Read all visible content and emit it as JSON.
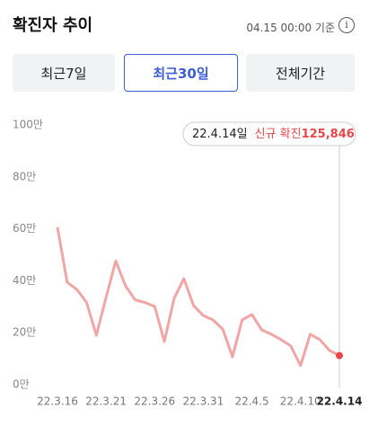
{
  "header": {
    "title": "확진자 추이",
    "timestamp": "04.15 00:00 기준"
  },
  "tabs": [
    "최근7일",
    "최근30일",
    "전체기간"
  ],
  "active_tab": 1,
  "chart_data": {
    "type": "line",
    "categories": [
      "22.3.16",
      null,
      null,
      null,
      null,
      "22.3.21",
      null,
      null,
      null,
      null,
      "22.3.26",
      null,
      null,
      null,
      null,
      "22.3.31",
      null,
      null,
      null,
      null,
      "22.4.5",
      null,
      null,
      null,
      null,
      "22.4.10",
      null,
      null,
      null,
      "22.4.14"
    ],
    "series": [
      {
        "name": "신규 확진",
        "color": "#f2a5a5",
        "values": [
          62,
          40.8,
          38,
          33,
          20.4,
          35,
          49,
          39.4,
          34,
          33,
          31.5,
          18,
          34.6,
          42.2,
          31.8,
          28,
          26.3,
          22.8,
          12.1,
          26.3,
          28.4,
          22.5,
          20.8,
          18.7,
          16.3,
          8.7,
          20.8,
          18.7,
          14.5,
          12.5846
        ]
      }
    ],
    "ylim": [
      0,
      100
    ],
    "yticks": [
      {
        "value": 0,
        "label": "0만"
      },
      {
        "value": 20,
        "label": "20만"
      },
      {
        "value": 40,
        "label": "40만"
      },
      {
        "value": 60,
        "label": "60만"
      },
      {
        "value": 80,
        "label": "80만"
      },
      {
        "value": 100,
        "label": "100만"
      }
    ],
    "grid": false,
    "tooltip": {
      "date": "22.4.14일",
      "label": "신규 확진",
      "value": "125,846"
    },
    "highlight_color": "#e8474a"
  }
}
